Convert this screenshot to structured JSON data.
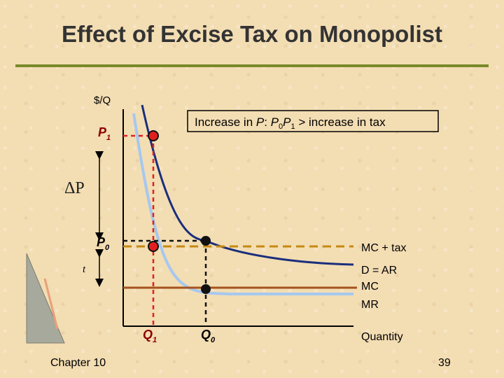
{
  "slide": {
    "title": "Effect of Excise Tax on Monopolist",
    "footer_left": "Chapter 10",
    "page_number": "39"
  },
  "diagram": {
    "y_axis_label": "$/Q",
    "x_axis_label": "Quantity",
    "p1_label": "P",
    "p1_sub": "1",
    "p0_label": "P",
    "p0_sub": "0",
    "q1_label": "Q",
    "q1_sub": "1",
    "q0_label": "Q",
    "q0_sub": "0",
    "delta_p_label": "ΔP",
    "t_label": "t",
    "annotation": {
      "prefix": "Increase in ",
      "p": "P",
      "colon": ": ",
      "p0": "P",
      "p0_sub": "0",
      "p1": "P",
      "p1_sub": "1",
      "suffix": " > increase in tax"
    },
    "curve_labels": {
      "mc_tax": "MC + tax",
      "demand": "D = AR",
      "mc": "MC",
      "mr": "MR"
    }
  },
  "colors": {
    "demand": "#1a2f7c",
    "marginal_revenue": "#a6c8ef",
    "marginal_cost": "#a5521e",
    "mc_plus_tax": "#c58a12",
    "new_equilibrium_guides": "#e02020",
    "old_equilibrium_guides": "#111111",
    "title_rule": "#7a8a2a"
  }
}
